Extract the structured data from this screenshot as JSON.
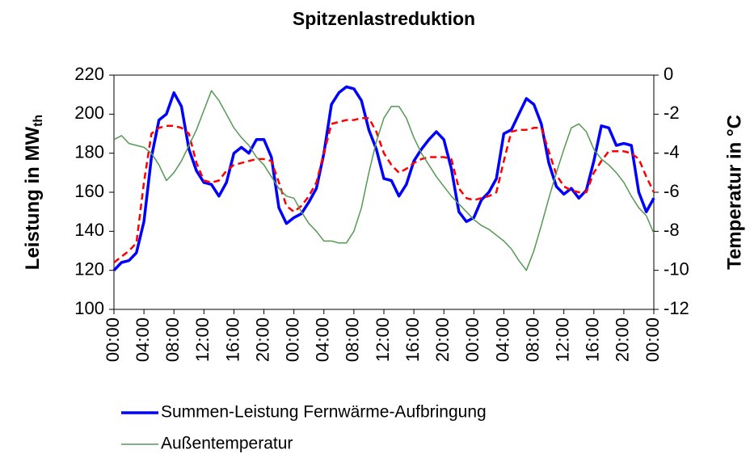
{
  "chart_data": {
    "type": "line",
    "title": "Spitzenlastreduktion",
    "ylabel": {
      "text": "Leistung in MW",
      "subscript": "th"
    },
    "y2label": "Temperatur in °C",
    "x": [
      0,
      1,
      2,
      3,
      4,
      5,
      6,
      7,
      8,
      9,
      10,
      11,
      12,
      13,
      14,
      15,
      16,
      17,
      18,
      19,
      20,
      21,
      22,
      23,
      24,
      25,
      26,
      27,
      28,
      29,
      30,
      31,
      32,
      33,
      34,
      35,
      36,
      37,
      38,
      39,
      40,
      41,
      42,
      43,
      44,
      45,
      46,
      47,
      48,
      49,
      50,
      51,
      52,
      53,
      54,
      55,
      56,
      57,
      58,
      59,
      60,
      61,
      62,
      63,
      64,
      65,
      66,
      67,
      68,
      69,
      70,
      71,
      72
    ],
    "xlim": [
      0,
      72
    ],
    "xticks": [
      {
        "value": 0,
        "label": "00:00"
      },
      {
        "value": 4,
        "label": "04:00"
      },
      {
        "value": 8,
        "label": "08:00"
      },
      {
        "value": 12,
        "label": "12:00"
      },
      {
        "value": 16,
        "label": "16:00"
      },
      {
        "value": 20,
        "label": "20:00"
      },
      {
        "value": 24,
        "label": "00:00"
      },
      {
        "value": 28,
        "label": "04:00"
      },
      {
        "value": 32,
        "label": "08:00"
      },
      {
        "value": 36,
        "label": "12:00"
      },
      {
        "value": 40,
        "label": "16:00"
      },
      {
        "value": 44,
        "label": "20:00"
      },
      {
        "value": 48,
        "label": "00:00"
      },
      {
        "value": 52,
        "label": "04:00"
      },
      {
        "value": 56,
        "label": "08:00"
      },
      {
        "value": 60,
        "label": "12:00"
      },
      {
        "value": 64,
        "label": "16:00"
      },
      {
        "value": 68,
        "label": "20:00"
      },
      {
        "value": 72,
        "label": "00:00"
      }
    ],
    "ylim": [
      100,
      220
    ],
    "yticks": [
      100,
      120,
      140,
      160,
      180,
      200,
      220
    ],
    "y2lim": [
      -12,
      0
    ],
    "y2ticks": [
      -12,
      -10,
      -8,
      -6,
      -4,
      -2,
      0
    ],
    "series": [
      {
        "name": "Summen-Leistung Fernwärme-Aufbringung",
        "color": "#0000ff",
        "style": "solid",
        "values": [
          120,
          124,
          125,
          129,
          145,
          178,
          197,
          200,
          211,
          204,
          182,
          171,
          165,
          164,
          158,
          165,
          180,
          183,
          180,
          187,
          187,
          178,
          152,
          144,
          147,
          149,
          155,
          162,
          180,
          205,
          211,
          214,
          213,
          207,
          192,
          182,
          167,
          166,
          158,
          164,
          176,
          182,
          187,
          191,
          187,
          172,
          150,
          145,
          147,
          156,
          160,
          167,
          190,
          192,
          200,
          208,
          205,
          195,
          175,
          163,
          159,
          162,
          157,
          161,
          176,
          194,
          193,
          184,
          185,
          184,
          160,
          150,
          157
        ]
      },
      {
        "color": "#ff0000",
        "style": "dashed",
        "values": [
          124,
          127,
          130,
          134,
          165,
          190,
          193,
          194,
          194,
          193,
          190,
          175,
          166,
          165,
          166,
          171,
          174,
          175,
          176,
          177,
          177,
          176,
          165,
          153,
          150,
          153,
          158,
          165,
          180,
          195,
          196,
          197,
          197,
          198,
          198,
          191,
          180,
          174,
          170,
          172,
          175,
          177,
          178,
          178,
          178,
          177,
          162,
          157,
          156,
          157,
          158,
          160,
          176,
          191,
          192,
          192,
          193,
          193,
          181,
          169,
          163,
          161,
          160,
          160,
          170,
          176,
          181,
          181,
          181,
          180,
          177,
          168,
          160
        ]
      },
      {
        "name": "Außentemperatur",
        "color": "#559955",
        "style": "thin",
        "axis": "y2",
        "values": [
          -3.3,
          -3.1,
          -3.5,
          -3.6,
          -3.7,
          -4.0,
          -4.6,
          -5.4,
          -5.0,
          -4.4,
          -3.6,
          -2.8,
          -1.8,
          -0.8,
          -1.3,
          -2.0,
          -2.7,
          -3.2,
          -3.6,
          -4.2,
          -4.6,
          -5.2,
          -5.8,
          -6.2,
          -6.3,
          -7.0,
          -7.6,
          -8.0,
          -8.5,
          -8.5,
          -8.6,
          -8.6,
          -8.0,
          -6.8,
          -5.0,
          -3.4,
          -2.2,
          -1.6,
          -1.6,
          -2.2,
          -3.2,
          -4.0,
          -4.6,
          -5.2,
          -5.7,
          -6.2,
          -6.6,
          -7.0,
          -7.4,
          -7.7,
          -7.9,
          -8.2,
          -8.5,
          -8.9,
          -9.5,
          -10.0,
          -9.0,
          -7.7,
          -6.3,
          -5.0,
          -3.8,
          -2.7,
          -2.5,
          -2.9,
          -3.8,
          -4.3,
          -4.6,
          -5.0,
          -5.5,
          -6.2,
          -6.8,
          -7.2,
          -8.1
        ]
      }
    ]
  }
}
